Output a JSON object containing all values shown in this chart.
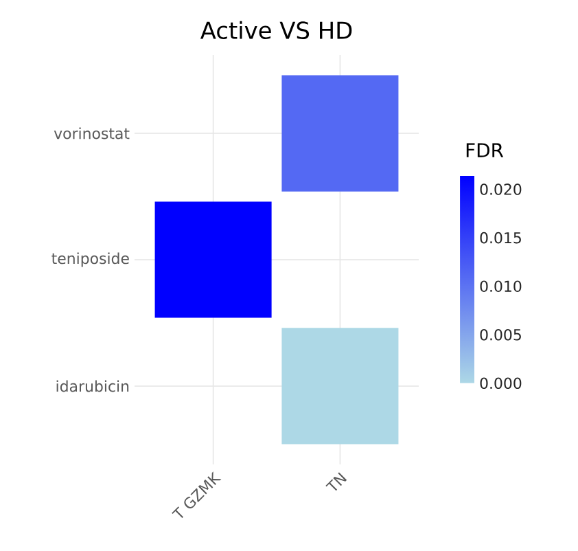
{
  "chart_data": {
    "type": "heatmap",
    "title": "Active VS  HD",
    "categories": [
      "T GZMK",
      "TN"
    ],
    "y_categories": [
      "vorinostat",
      "teniposide",
      "idarubicin"
    ],
    "cells": [
      [
        null,
        0.011
      ],
      [
        0.0214,
        null
      ],
      [
        null,
        0.0
      ]
    ],
    "clabel": "FDR",
    "clim": [
      0.0,
      0.0214
    ],
    "cticks": [
      {
        "value": 0.0,
        "label": "0.000"
      },
      {
        "value": 0.005,
        "label": "0.005"
      },
      {
        "value": 0.01,
        "label": "0.010"
      },
      {
        "value": 0.015,
        "label": "0.015"
      },
      {
        "value": 0.02,
        "label": "0.020"
      }
    ],
    "grid": true
  }
}
